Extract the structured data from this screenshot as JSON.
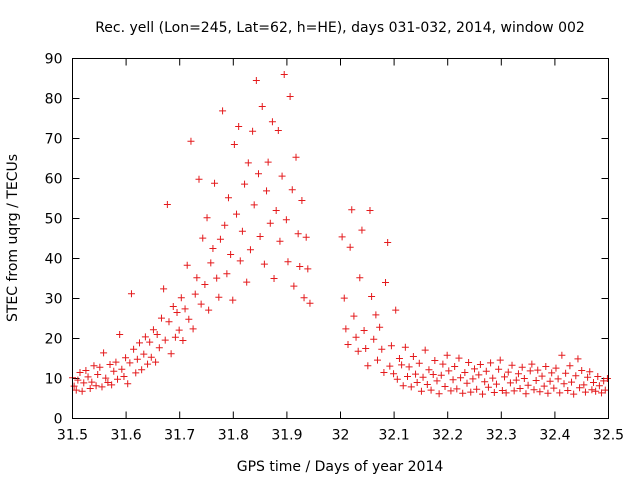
{
  "chart_data": {
    "type": "scatter",
    "title": "Rec. yell (Lon=245, Lat=62, h=HE), days 031-032, 2014, window 002",
    "xlabel": "GPS time / Days of year 2014",
    "ylabel": "STEC from uqrg / TECUs",
    "xlim": [
      31.5,
      32.5
    ],
    "ylim": [
      0,
      90
    ],
    "xticks": [
      31.5,
      31.6,
      31.7,
      31.8,
      31.9,
      32,
      32.1,
      32.2,
      32.3,
      32.4,
      32.5
    ],
    "xtick_labels": [
      "31.5",
      "31.6",
      "31.7",
      "31.8",
      "31.9",
      "32",
      "32.1",
      "32.2",
      "32.3",
      "32.4",
      "32.5"
    ],
    "yticks": [
      0,
      10,
      20,
      30,
      40,
      50,
      60,
      70,
      80,
      90
    ],
    "ytick_labels": [
      "0",
      "10",
      "20",
      "30",
      "40",
      "50",
      "60",
      "70",
      "80",
      "90"
    ],
    "marker": "+",
    "color": "#e41a1c",
    "grid": false,
    "series": [
      {
        "name": "STEC",
        "points": [
          [
            31.5,
            10.2
          ],
          [
            31.503,
            8.1
          ],
          [
            31.507,
            7.1
          ],
          [
            31.51,
            9.6
          ],
          [
            31.514,
            11.5
          ],
          [
            31.518,
            6.8
          ],
          [
            31.521,
            8.9
          ],
          [
            31.525,
            12.0
          ],
          [
            31.529,
            10.4
          ],
          [
            31.533,
            7.5
          ],
          [
            31.536,
            9.1
          ],
          [
            31.54,
            13.2
          ],
          [
            31.544,
            8.2
          ],
          [
            31.547,
            11.0
          ],
          [
            31.551,
            12.8
          ],
          [
            31.555,
            7.9
          ],
          [
            31.558,
            16.4
          ],
          [
            31.562,
            10.1
          ],
          [
            31.566,
            9.0
          ],
          [
            31.57,
            13.5
          ],
          [
            31.573,
            8.4
          ],
          [
            31.577,
            11.8
          ],
          [
            31.581,
            14.1
          ],
          [
            31.584,
            9.8
          ],
          [
            31.588,
            21.0
          ],
          [
            31.592,
            12.3
          ],
          [
            31.596,
            10.5
          ],
          [
            31.599,
            15.2
          ],
          [
            31.603,
            8.7
          ],
          [
            31.607,
            13.9
          ],
          [
            31.61,
            31.2
          ],
          [
            31.614,
            17.3
          ],
          [
            31.618,
            11.4
          ],
          [
            31.621,
            14.8
          ],
          [
            31.625,
            18.9
          ],
          [
            31.629,
            12.2
          ],
          [
            31.633,
            16.1
          ],
          [
            31.636,
            20.4
          ],
          [
            31.64,
            13.6
          ],
          [
            31.644,
            19.1
          ],
          [
            31.647,
            15.3
          ],
          [
            31.651,
            22.2
          ],
          [
            31.655,
            14.1
          ],
          [
            31.658,
            21.0
          ],
          [
            31.662,
            17.7
          ],
          [
            31.666,
            25.1
          ],
          [
            31.67,
            32.4
          ],
          [
            31.673,
            19.6
          ],
          [
            31.677,
            53.5
          ],
          [
            31.68,
            24.2
          ],
          [
            31.684,
            16.2
          ],
          [
            31.688,
            28.0
          ],
          [
            31.692,
            20.3
          ],
          [
            31.695,
            26.5
          ],
          [
            31.699,
            22.1
          ],
          [
            31.703,
            30.2
          ],
          [
            31.706,
            19.5
          ],
          [
            31.71,
            27.4
          ],
          [
            31.714,
            38.3
          ],
          [
            31.717,
            24.8
          ],
          [
            31.721,
            69.3
          ],
          [
            31.725,
            22.4
          ],
          [
            31.729,
            31.1
          ],
          [
            31.732,
            35.2
          ],
          [
            31.736,
            59.8
          ],
          [
            31.74,
            28.6
          ],
          [
            31.743,
            45.1
          ],
          [
            31.747,
            33.5
          ],
          [
            31.751,
            50.2
          ],
          [
            31.754,
            27.1
          ],
          [
            31.758,
            38.9
          ],
          [
            31.762,
            42.5
          ],
          [
            31.765,
            58.8
          ],
          [
            31.769,
            35.1
          ],
          [
            31.773,
            30.3
          ],
          [
            31.776,
            44.8
          ],
          [
            31.78,
            76.9
          ],
          [
            31.784,
            48.3
          ],
          [
            31.788,
            36.2
          ],
          [
            31.791,
            55.2
          ],
          [
            31.795,
            41.0
          ],
          [
            31.799,
            29.6
          ],
          [
            31.802,
            68.5
          ],
          [
            31.806,
            51.1
          ],
          [
            31.81,
            73.0
          ],
          [
            31.813,
            39.4
          ],
          [
            31.817,
            46.8
          ],
          [
            31.821,
            58.6
          ],
          [
            31.825,
            34.1
          ],
          [
            31.828,
            63.9
          ],
          [
            31.832,
            42.2
          ],
          [
            31.836,
            71.8
          ],
          [
            31.839,
            53.4
          ],
          [
            31.843,
            84.5
          ],
          [
            31.847,
            61.2
          ],
          [
            31.85,
            45.5
          ],
          [
            31.854,
            78.0
          ],
          [
            31.858,
            38.6
          ],
          [
            31.862,
            56.9
          ],
          [
            31.865,
            64.1
          ],
          [
            31.869,
            48.8
          ],
          [
            31.873,
            74.2
          ],
          [
            31.876,
            35.0
          ],
          [
            31.88,
            52.0
          ],
          [
            31.884,
            72.0
          ],
          [
            31.887,
            44.3
          ],
          [
            31.891,
            60.6
          ],
          [
            31.895,
            86.0
          ],
          [
            31.899,
            49.7
          ],
          [
            31.902,
            39.2
          ],
          [
            31.906,
            80.5
          ],
          [
            31.91,
            57.2
          ],
          [
            31.913,
            33.1
          ],
          [
            31.917,
            65.3
          ],
          [
            31.921,
            46.2
          ],
          [
            31.924,
            38.0
          ],
          [
            31.928,
            54.5
          ],
          [
            31.932,
            30.2
          ],
          [
            31.936,
            45.3
          ],
          [
            31.939,
            37.4
          ],
          [
            31.943,
            28.8
          ],
          [
            32.003,
            45.4
          ],
          [
            32.007,
            30.1
          ],
          [
            32.01,
            22.4
          ],
          [
            32.014,
            18.5
          ],
          [
            32.018,
            42.8
          ],
          [
            32.021,
            52.2
          ],
          [
            32.025,
            25.6
          ],
          [
            32.029,
            20.3
          ],
          [
            32.033,
            16.8
          ],
          [
            32.036,
            35.2
          ],
          [
            32.04,
            47.1
          ],
          [
            32.044,
            22.0
          ],
          [
            32.047,
            17.5
          ],
          [
            32.051,
            13.2
          ],
          [
            32.055,
            52.0
          ],
          [
            32.058,
            30.5
          ],
          [
            32.062,
            19.8
          ],
          [
            32.066,
            25.9
          ],
          [
            32.069,
            14.6
          ],
          [
            32.073,
            22.8
          ],
          [
            32.077,
            17.3
          ],
          [
            32.081,
            11.5
          ],
          [
            32.084,
            34.0
          ],
          [
            32.088,
            44.0
          ],
          [
            32.092,
            13.1
          ],
          [
            32.095,
            18.2
          ],
          [
            32.099,
            11.2
          ],
          [
            32.103,
            27.1
          ],
          [
            32.106,
            9.8
          ],
          [
            32.11,
            15.0
          ],
          [
            32.114,
            13.4
          ],
          [
            32.117,
            8.2
          ],
          [
            32.121,
            17.8
          ],
          [
            32.125,
            10.5
          ],
          [
            32.128,
            12.9
          ],
          [
            32.132,
            7.9
          ],
          [
            32.136,
            15.5
          ],
          [
            32.14,
            11.1
          ],
          [
            32.143,
            9.0
          ],
          [
            32.147,
            13.8
          ],
          [
            32.151,
            6.8
          ],
          [
            32.154,
            10.3
          ],
          [
            32.158,
            17.1
          ],
          [
            32.162,
            8.5
          ],
          [
            32.165,
            12.2
          ],
          [
            32.169,
            7.1
          ],
          [
            32.173,
            11.0
          ],
          [
            32.176,
            14.5
          ],
          [
            32.18,
            9.4
          ],
          [
            32.184,
            6.2
          ],
          [
            32.188,
            10.8
          ],
          [
            32.191,
            13.6
          ],
          [
            32.195,
            8.0
          ],
          [
            32.199,
            15.8
          ],
          [
            32.202,
            11.9
          ],
          [
            32.206,
            6.9
          ],
          [
            32.21,
            9.7
          ],
          [
            32.213,
            13.0
          ],
          [
            32.217,
            7.4
          ],
          [
            32.221,
            15.1
          ],
          [
            32.224,
            10.2
          ],
          [
            32.228,
            6.3
          ],
          [
            32.232,
            11.5
          ],
          [
            32.236,
            8.8
          ],
          [
            32.239,
            14.0
          ],
          [
            32.243,
            6.6
          ],
          [
            32.247,
            9.9
          ],
          [
            32.25,
            12.4
          ],
          [
            32.254,
            7.3
          ],
          [
            32.258,
            10.9
          ],
          [
            32.261,
            13.5
          ],
          [
            32.265,
            6.1
          ],
          [
            32.269,
            9.2
          ],
          [
            32.272,
            11.8
          ],
          [
            32.276,
            7.8
          ],
          [
            32.28,
            13.9
          ],
          [
            32.284,
            10.1
          ],
          [
            32.287,
            6.5
          ],
          [
            32.291,
            8.6
          ],
          [
            32.295,
            12.3
          ],
          [
            32.298,
            14.6
          ],
          [
            32.302,
            7.0
          ],
          [
            32.306,
            10.4
          ],
          [
            32.309,
            6.4
          ],
          [
            32.313,
            11.6
          ],
          [
            32.317,
            8.9
          ],
          [
            32.32,
            13.3
          ],
          [
            32.324,
            6.9
          ],
          [
            32.328,
            9.6
          ],
          [
            32.332,
            11.2
          ],
          [
            32.335,
            7.5
          ],
          [
            32.339,
            12.8
          ],
          [
            32.343,
            10.0
          ],
          [
            32.346,
            6.2
          ],
          [
            32.35,
            8.3
          ],
          [
            32.354,
            11.9
          ],
          [
            32.357,
            13.6
          ],
          [
            32.361,
            7.2
          ],
          [
            32.365,
            9.5
          ],
          [
            32.368,
            12.1
          ],
          [
            32.372,
            6.7
          ],
          [
            32.376,
            10.6
          ],
          [
            32.38,
            8.1
          ],
          [
            32.383,
            13.0
          ],
          [
            32.387,
            6.3
          ],
          [
            32.391,
            9.3
          ],
          [
            32.394,
            11.4
          ],
          [
            32.398,
            7.6
          ],
          [
            32.402,
            12.6
          ],
          [
            32.406,
            9.9
          ],
          [
            32.409,
            6.4
          ],
          [
            32.413,
            15.8
          ],
          [
            32.417,
            8.7
          ],
          [
            32.42,
            11.3
          ],
          [
            32.424,
            7.0
          ],
          [
            32.428,
            13.2
          ],
          [
            32.431,
            9.1
          ],
          [
            32.435,
            6.1
          ],
          [
            32.439,
            10.7
          ],
          [
            32.443,
            14.9
          ],
          [
            32.446,
            7.7
          ],
          [
            32.45,
            12.0
          ],
          [
            32.454,
            8.4
          ],
          [
            32.457,
            6.6
          ],
          [
            32.461,
            10.3
          ],
          [
            32.465,
            11.7
          ],
          [
            32.469,
            7.2
          ],
          [
            32.472,
            9.0
          ],
          [
            32.476,
            6.8
          ],
          [
            32.48,
            10.5
          ],
          [
            32.483,
            8.2
          ],
          [
            32.487,
            6.4
          ],
          [
            32.491,
            9.4
          ],
          [
            32.494,
            7.1
          ],
          [
            32.498,
            10.0
          ]
        ]
      }
    ]
  }
}
